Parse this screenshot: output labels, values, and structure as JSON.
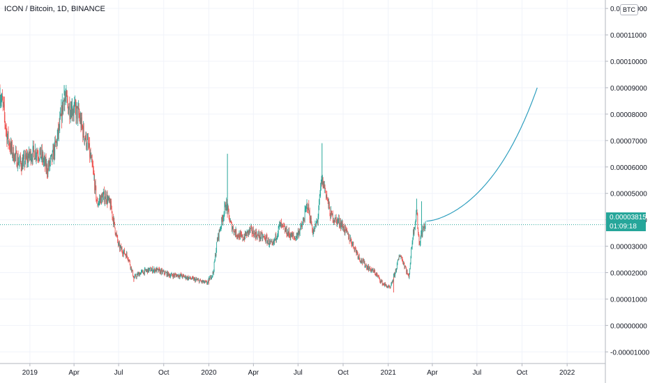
{
  "header": {
    "title": "ICON / Bitcoin, 1D, BINANCE"
  },
  "price_scale": {
    "currency": "BTC",
    "current_price": "0.00003815",
    "countdown": "01:09:18"
  },
  "colors": {
    "up": "#26a69a",
    "down": "#ef5350",
    "curve": "#2f9fbf",
    "grid": "#f0f3fa",
    "axis_text": "#131722"
  },
  "chart_data": {
    "type": "candlestick",
    "title": "ICON / Bitcoin, 1D, BINANCE",
    "xlabel": "",
    "ylabel": "",
    "x_tick_labels": [
      "2019",
      "Apr",
      "Jul",
      "Oct",
      "2020",
      "Apr",
      "Jul",
      "Oct",
      "2021",
      "Apr",
      "Jul",
      "Oct",
      "2022"
    ],
    "y_tick_labels": [
      "0.00012000",
      "0.00011000",
      "0.00010000",
      "0.00009000",
      "0.00008000",
      "0.00007000",
      "0.00006000",
      "0.00005000",
      "0.00004000",
      "0.00003000",
      "0.00002000",
      "0.00001000",
      "0.00000000",
      "-0.00001000"
    ],
    "y_ticks": [
      0.00012,
      0.00011,
      0.0001,
      9e-05,
      8e-05,
      7e-05,
      6e-05,
      5e-05,
      4e-05,
      3e-05,
      2e-05,
      1e-05,
      0,
      -1e-05
    ],
    "ylim": [
      -1.44e-05,
      0.0001232
    ],
    "xlim": [
      "2018-11-01",
      "2022-03-20"
    ],
    "x_tick_dates": [
      "2019-01-01",
      "2019-04-01",
      "2019-07-01",
      "2019-10-01",
      "2020-01-01",
      "2020-04-01",
      "2020-07-01",
      "2020-10-01",
      "2021-01-01",
      "2021-04-01",
      "2021-07-01",
      "2021-10-01",
      "2022-01-01"
    ],
    "grid": true,
    "current_price": 3.815e-05,
    "price_path": [
      [
        "2018-11-01",
        8.8e-05
      ],
      [
        "2018-11-08",
        8.2e-05
      ],
      [
        "2018-11-15",
        7.2e-05
      ],
      [
        "2018-11-25",
        6.6e-05
      ],
      [
        "2018-12-05",
        6.3e-05
      ],
      [
        "2018-12-15",
        6.1e-05
      ],
      [
        "2018-12-25",
        6.3e-05
      ],
      [
        "2019-01-05",
        6.5e-05
      ],
      [
        "2019-01-15",
        6.6e-05
      ],
      [
        "2019-01-25",
        6.4e-05
      ],
      [
        "2019-02-05",
        5.9e-05
      ],
      [
        "2019-02-15",
        6.3e-05
      ],
      [
        "2019-02-25",
        7e-05
      ],
      [
        "2019-03-05",
        7.8e-05
      ],
      [
        "2019-03-12",
        8.7e-05
      ],
      [
        "2019-03-20",
        8.3e-05
      ],
      [
        "2019-03-30",
        8.2e-05
      ],
      [
        "2019-04-10",
        8e-05
      ],
      [
        "2019-04-20",
        7.3e-05
      ],
      [
        "2019-04-30",
        6.8e-05
      ],
      [
        "2019-05-10",
        5.8e-05
      ],
      [
        "2019-05-18",
        4.6e-05
      ],
      [
        "2019-05-25",
        4.8e-05
      ],
      [
        "2019-06-05",
        4.9e-05
      ],
      [
        "2019-06-15",
        4.5e-05
      ],
      [
        "2019-06-22",
        3.8e-05
      ],
      [
        "2019-07-01",
        3e-05
      ],
      [
        "2019-07-10",
        2.8e-05
      ],
      [
        "2019-07-20",
        2.6e-05
      ],
      [
        "2019-08-01",
        1.8e-05
      ],
      [
        "2019-08-15",
        2e-05
      ],
      [
        "2019-09-01",
        2.1e-05
      ],
      [
        "2019-09-15",
        2.1e-05
      ],
      [
        "2019-10-01",
        2e-05
      ],
      [
        "2019-10-15",
        1.9e-05
      ],
      [
        "2019-11-01",
        1.9e-05
      ],
      [
        "2019-11-20",
        1.8e-05
      ],
      [
        "2019-12-10",
        1.7e-05
      ],
      [
        "2019-12-28",
        1.6e-05
      ],
      [
        "2020-01-10",
        2e-05
      ],
      [
        "2020-01-18",
        3.2e-05
      ],
      [
        "2020-01-28",
        4e-05
      ],
      [
        "2020-02-05",
        4.6e-05
      ],
      [
        "2020-02-15",
        3.8e-05
      ],
      [
        "2020-02-25",
        3.5e-05
      ],
      [
        "2020-03-10",
        3.3e-05
      ],
      [
        "2020-03-25",
        3.6e-05
      ],
      [
        "2020-04-10",
        3.4e-05
      ],
      [
        "2020-04-25",
        3.3e-05
      ],
      [
        "2020-05-10",
        3e-05
      ],
      [
        "2020-05-25",
        3.8e-05
      ],
      [
        "2020-06-10",
        3.5e-05
      ],
      [
        "2020-06-25",
        3.3e-05
      ],
      [
        "2020-07-10",
        3.8e-05
      ],
      [
        "2020-07-20",
        4.6e-05
      ],
      [
        "2020-08-01",
        3.5e-05
      ],
      [
        "2020-08-10",
        4e-05
      ],
      [
        "2020-08-18",
        5.5e-05
      ],
      [
        "2020-08-25",
        5.2e-05
      ],
      [
        "2020-09-05",
        4.2e-05
      ],
      [
        "2020-09-15",
        4e-05
      ],
      [
        "2020-09-25",
        3.9e-05
      ],
      [
        "2020-10-05",
        3.6e-05
      ],
      [
        "2020-10-20",
        3.1e-05
      ],
      [
        "2020-11-05",
        2.5e-05
      ],
      [
        "2020-11-20",
        2.2e-05
      ],
      [
        "2020-12-05",
        2e-05
      ],
      [
        "2020-12-20",
        1.6e-05
      ],
      [
        "2021-01-05",
        1.4e-05
      ],
      [
        "2021-01-15",
        2e-05
      ],
      [
        "2021-01-25",
        2.7e-05
      ],
      [
        "2021-02-05",
        2.2e-05
      ],
      [
        "2021-02-12",
        1.8e-05
      ],
      [
        "2021-02-20",
        3.4e-05
      ],
      [
        "2021-02-28",
        4.3e-05
      ],
      [
        "2021-03-05",
        3.1e-05
      ],
      [
        "2021-03-12",
        3.6e-05
      ],
      [
        "2021-03-18",
        3.82e-05
      ]
    ],
    "spikes": [
      [
        "2018-11-01",
        9e-05
      ],
      [
        "2019-03-12",
        9.1e-05
      ],
      [
        "2019-03-28",
        8.6e-05
      ],
      [
        "2019-05-12",
        5.7e-05
      ],
      [
        "2020-02-08",
        6.5e-05
      ],
      [
        "2020-08-19",
        6.9e-05
      ],
      [
        "2021-02-28",
        4.8e-05
      ],
      [
        "2021-03-10",
        4.7e-05
      ],
      [
        "2021-01-12",
        1.25e-05
      ],
      [
        "2019-08-01",
        1.65e-05
      ],
      [
        "2020-01-01",
        1.55e-05
      ]
    ],
    "projection": {
      "label": "",
      "start": [
        "2021-03-20",
        3.95e-05
      ],
      "end": [
        "2021-11-01",
        9e-05
      ],
      "shape": "exponential curve"
    }
  }
}
